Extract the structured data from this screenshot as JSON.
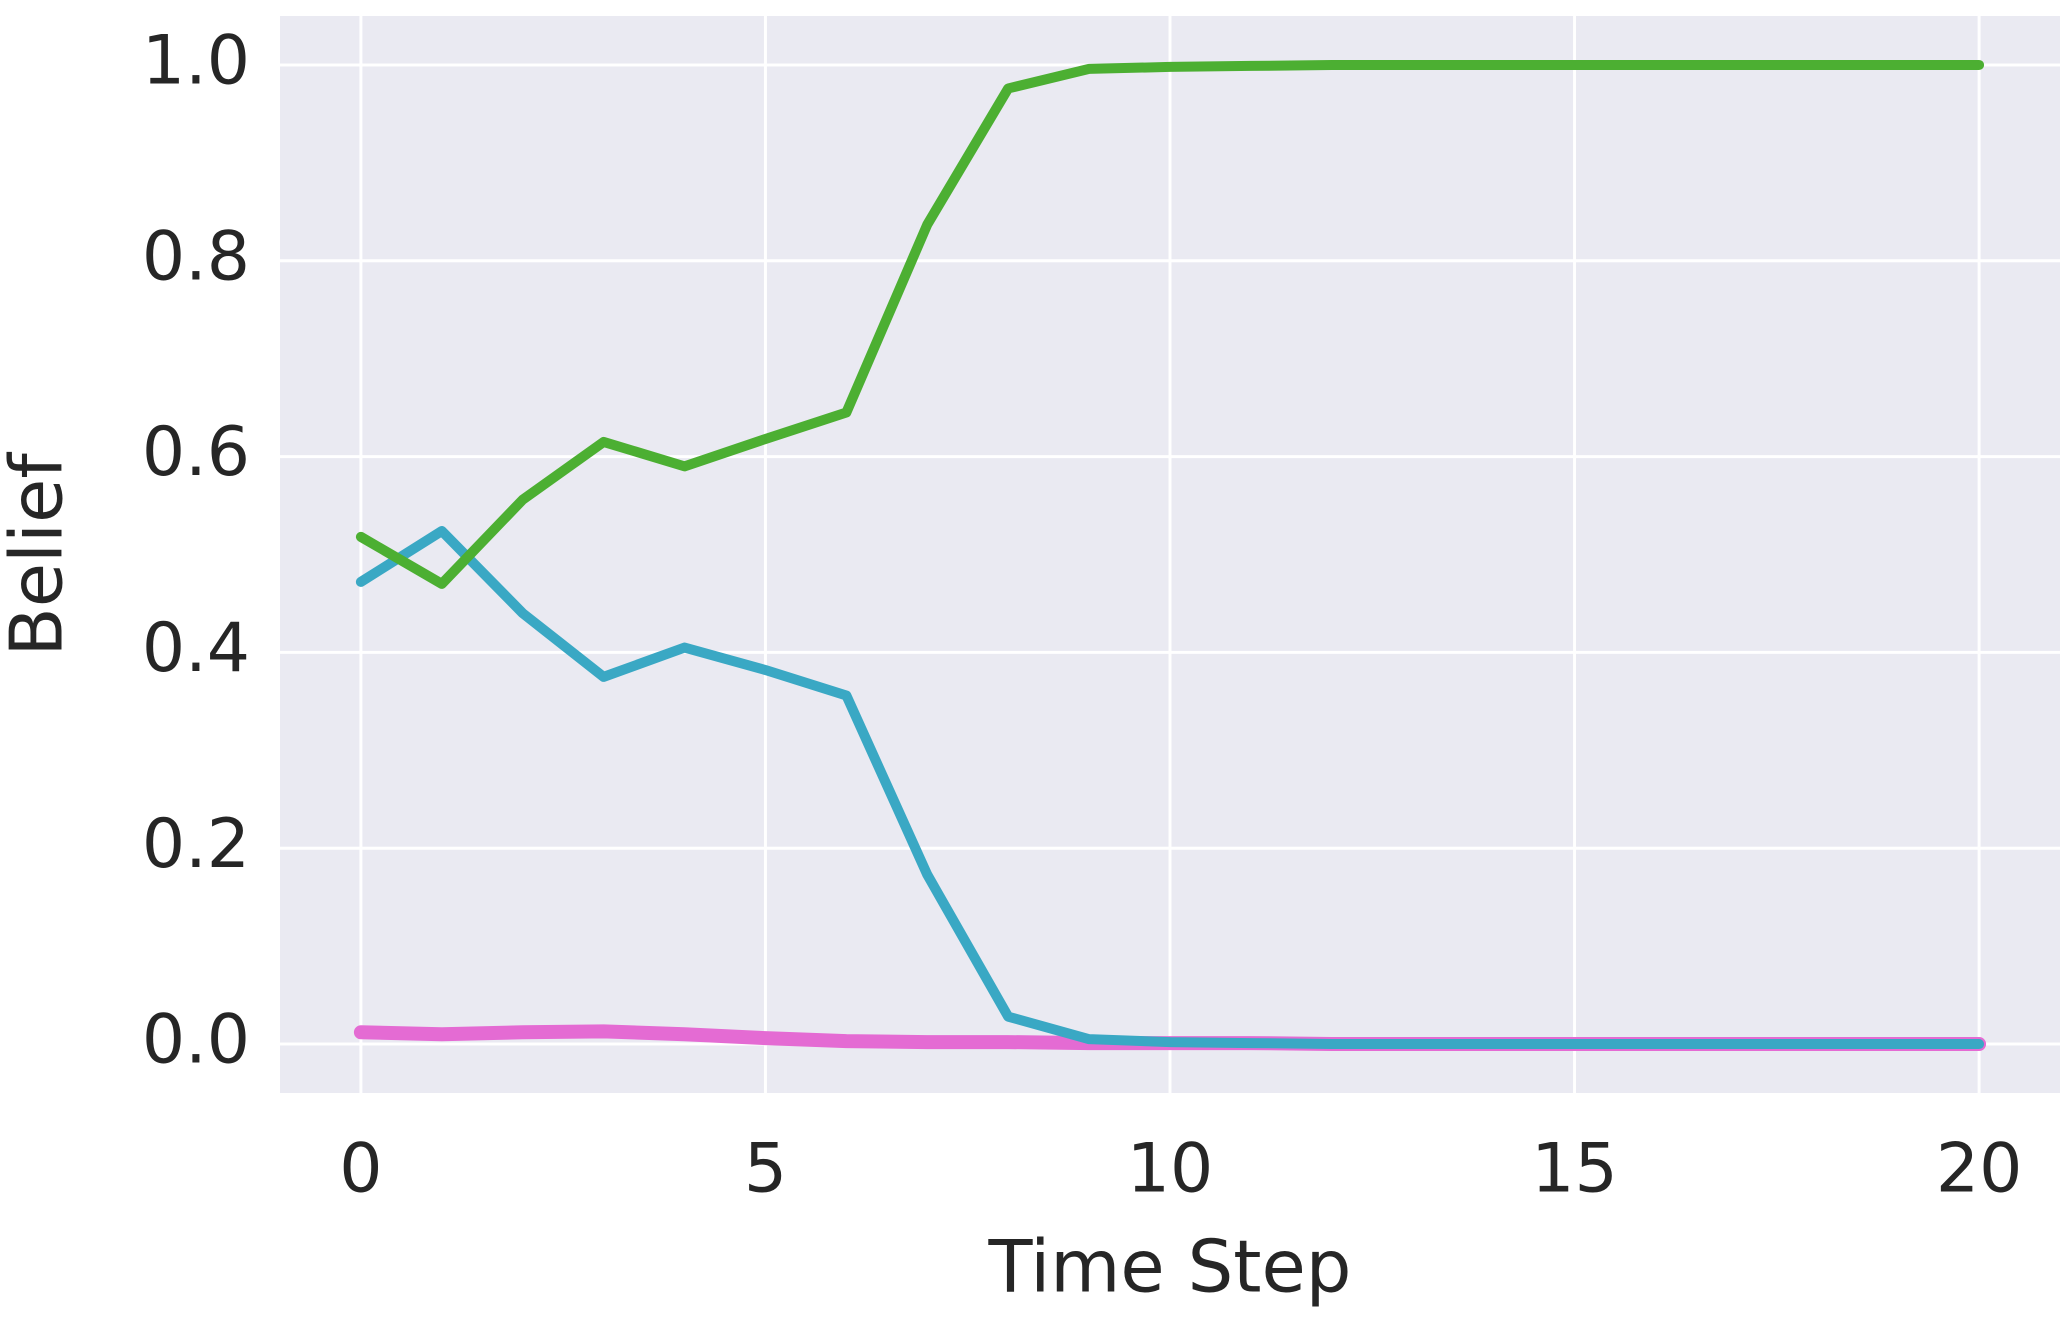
{
  "chart_data": {
    "type": "line",
    "x_label": "Time Step",
    "y_label": "Belief",
    "x": [
      0,
      1,
      2,
      3,
      4,
      5,
      6,
      7,
      8,
      9,
      10,
      11,
      12,
      13,
      14,
      15,
      16,
      17,
      18,
      19,
      20
    ],
    "series": [
      {
        "color": "#e46bd3",
        "values": [
          0.012,
          0.01,
          0.012,
          0.013,
          0.01,
          0.006,
          0.003,
          0.002,
          0.002,
          0.001,
          0.001,
          0.001,
          0,
          0,
          0,
          0,
          0,
          0,
          0,
          0,
          0
        ]
      },
      {
        "color": "#3aa8c4",
        "values": [
          0.472,
          0.524,
          0.44,
          0.375,
          0.405,
          0.382,
          0.356,
          0.173,
          0.028,
          0.005,
          0.002,
          0.001,
          0,
          0,
          0,
          0,
          0,
          0,
          0,
          0,
          0
        ]
      },
      {
        "color": "#4caf32",
        "values": [
          0.518,
          0.47,
          0.556,
          0.615,
          0.59,
          0.618,
          0.645,
          0.837,
          0.976,
          0.996,
          0.998,
          0.999,
          1,
          1,
          1,
          1,
          1,
          1,
          1,
          1,
          1
        ]
      }
    ],
    "xlim": [
      -1,
      21
    ],
    "ylim": [
      -0.05,
      1.05
    ],
    "xticks": [
      0,
      5,
      10,
      15,
      20
    ],
    "yticks": [
      {
        "value": 0,
        "label": "0.0"
      },
      {
        "value": 0.2,
        "label": "0.2"
      },
      {
        "value": 0.4,
        "label": "0.4"
      },
      {
        "value": 0.6,
        "label": "0.6"
      },
      {
        "value": 0.8,
        "label": "0.8"
      },
      {
        "value": 1,
        "label": "1.0"
      }
    ],
    "grid": true
  }
}
